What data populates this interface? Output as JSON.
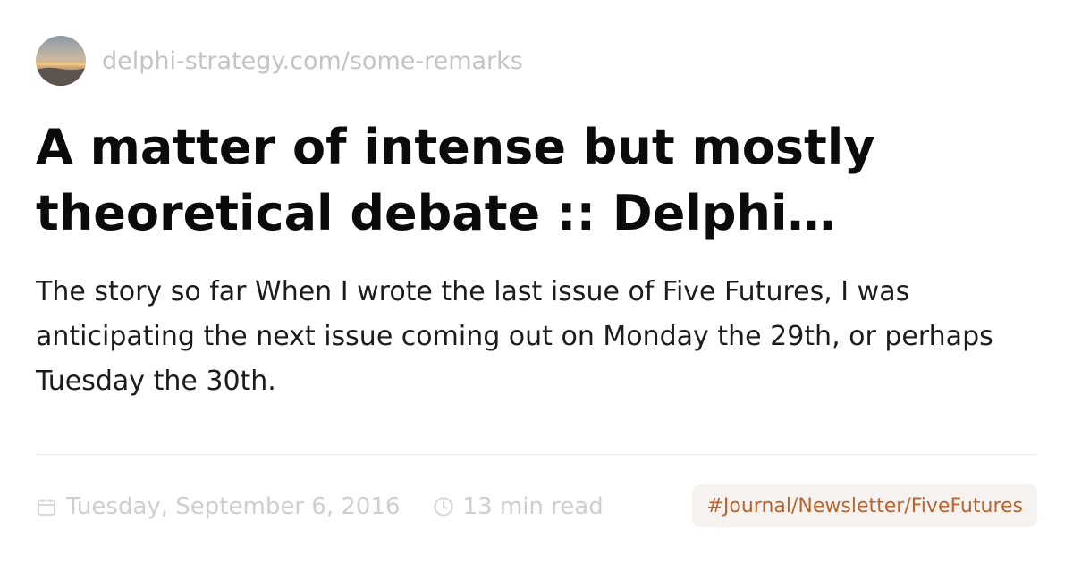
{
  "site": {
    "url": "delphi-strategy.com/some-remarks",
    "avatar_icon": "landscape-sunset-avatar"
  },
  "article": {
    "title": "A matter of intense but mostly theoretical debate :: Delphi Forecasting",
    "description": "The story so far When I wrote the last issue of Five Futures, I was anticipating the next issue coming out on Monday the 29th, or perhaps Tuesday the 30th."
  },
  "meta": {
    "date": "Tuesday, September 6, 2016",
    "date_icon": "calendar-icon",
    "read_time": "13 min read",
    "read_icon": "clock-icon"
  },
  "tag": {
    "label": "#Journal/Newsletter/FiveFutures"
  },
  "colors": {
    "muted_text": "#c4c4c4",
    "tag_background": "#f5f2ef",
    "tag_text": "#b76632"
  }
}
